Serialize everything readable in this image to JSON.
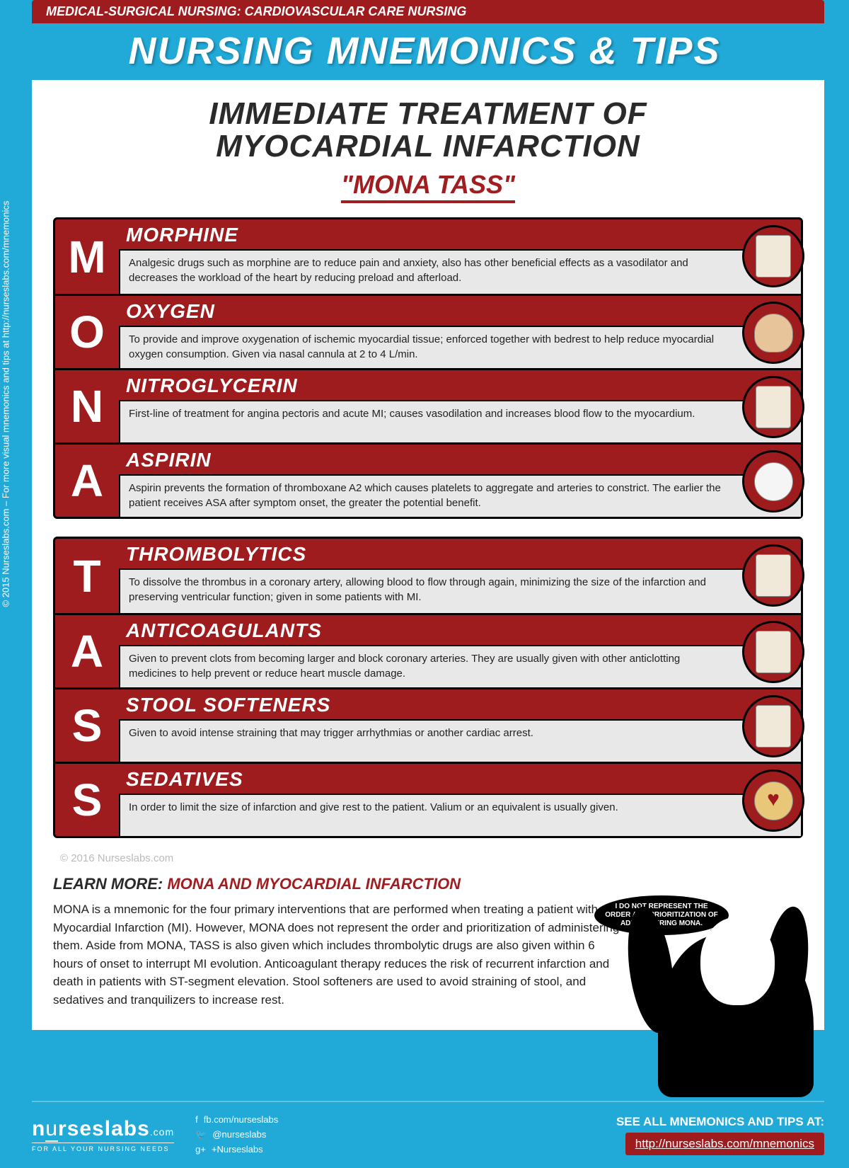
{
  "sidebar_text": "© 2015 Nurseslabs.com – For more visual mnemonics and tips at http://nurseslabs.com/mnemonics",
  "header": {
    "category": "MEDICAL-SURGICAL NURSING: CARDIOVASCULAR CARE NURSING",
    "title": "NURSING MNEMONICS & TIPS"
  },
  "content": {
    "subtitle_line1": "IMMEDIATE TREATMENT OF",
    "subtitle_line2": "MYOCARDIAL INFARCTION",
    "mnemonic": "\"MONA TASS\"",
    "copyright": "© 2016 Nurseslabs.com",
    "learn_more_label": "LEARN MORE:",
    "learn_more_topic": "MONA AND MYOCARDIAL INFARCTION",
    "learn_desc": "MONA is a mnemonic for the four primary interventions that are performed when treating a patient with Myocardial Infarction (MI). However, MONA does not represent the order and prioritization of administering them. Aside from MONA, TASS is also given which includes thrombolytic drugs are also given within 6 hours of onset to interrupt MI evolution. Anticoagulant therapy reduces the risk of recurrent infarction and death in patients with ST-segment elevation. Stool softeners are used to avoid straining of stool, and sedatives and tranquilizers to increase rest."
  },
  "groups": [
    {
      "items": [
        {
          "letter": "M",
          "title": "MORPHINE",
          "desc": "Analgesic drugs such as morphine are to reduce pain and anxiety, also has other beneficial effects as a vasodilator and decreases the workload of the heart by reducing preload and afterload.",
          "icon": "vial"
        },
        {
          "letter": "O",
          "title": "OXYGEN",
          "desc": "To provide and improve oxygenation of ischemic myocardial tissue; enforced together with bedrest to help reduce myocardial oxygen consumption. Given via nasal cannula at 2 to 4 L/min.",
          "icon": "face"
        },
        {
          "letter": "N",
          "title": "NITROGLYCERIN",
          "desc": "First-line of treatment for angina pectoris and acute MI; causes vasodilation and increases blood flow to the myocardium.",
          "icon": "bottle"
        },
        {
          "letter": "A",
          "title": "ASPIRIN",
          "desc": "Aspirin prevents the formation of thromboxane A2 which causes platelets to aggregate and arteries to constrict. The earlier the patient receives ASA after symptom onset, the greater the potential benefit.",
          "icon": "pill"
        }
      ]
    },
    {
      "items": [
        {
          "letter": "T",
          "title": "THROMBOLYTICS",
          "desc": "To dissolve the thrombus in a coronary artery, allowing blood to flow through again, minimizing the size of the infarction and preserving ventricular function; given in some patients with MI.",
          "icon": "pack1"
        },
        {
          "letter": "A",
          "title": "ANTICOAGULANTS",
          "desc": "Given to prevent clots from becoming larger and block coronary arteries. They are usually given with other anticlotting medicines to help prevent or reduce heart muscle damage.",
          "icon": "pack2"
        },
        {
          "letter": "S",
          "title": "STOOL SOFTENERS",
          "desc": "Given to avoid intense straining that may trigger arrhythmias or another cardiac arrest.",
          "icon": "bottle2"
        },
        {
          "letter": "S",
          "title": "SEDATIVES",
          "desc": "In order to limit the size of infarction and give rest to the patient.\nValium or an equivalent is usually given.",
          "icon": "heart"
        }
      ]
    }
  ],
  "mona_bubble": "I DO NOT REPRESENT THE ORDER AND PRIORITIZATION OF ADMINISTERING MONA.",
  "footer": {
    "logo_main_1": "n",
    "logo_main_2": "u",
    "logo_main_3": "rseslabs",
    "logo_suffix": ".com",
    "tagline": "FOR ALL YOUR NURSING NEEDS",
    "socials": {
      "fb": "fb.com/nurseslabs",
      "tw": "@nurseslabs",
      "gp": "+Nurseslabs"
    },
    "cta_label": "SEE ALL MNEMONICS AND TIPS AT:",
    "cta_link": "http://nurseslabs.com/mnemonics"
  },
  "colors": {
    "bg": "#21a9d8",
    "red": "#9e1b1e",
    "dark": "#2a2a2a"
  }
}
